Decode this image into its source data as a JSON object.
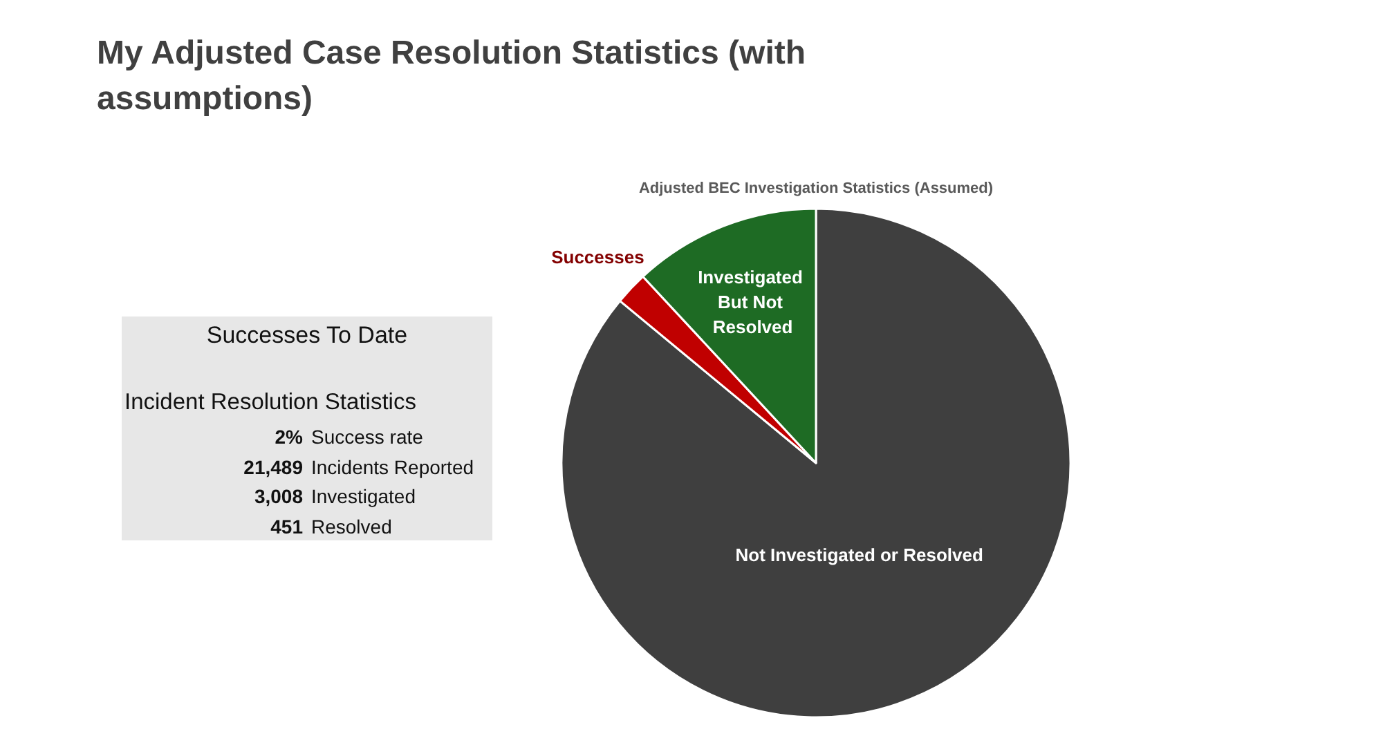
{
  "chart_data": [
    {
      "type": "other",
      "title": "My Adjusted Case Resolution Statistics (with assumptions)",
      "subtitle": "Successes To Date",
      "annotations": [
        "Incident Resolution Statistics"
      ],
      "categories": [
        "Success rate",
        "Incidents Reported",
        "Investigated",
        "Resolved"
      ],
      "value_labels": [
        "2%",
        "21,489",
        "3,008",
        "451"
      ]
    },
    {
      "type": "pie",
      "title": "Adjusted BEC Investigation Statistics (Assumed)",
      "categories": [
        "Not Investigated or Resolved",
        "Successes",
        "Investigated But Not Resolved"
      ],
      "values": [
        86,
        2.1,
        11.9
      ],
      "colors": [
        "#3f3f3f",
        "#c00000",
        "#1e6b24"
      ]
    }
  ]
}
